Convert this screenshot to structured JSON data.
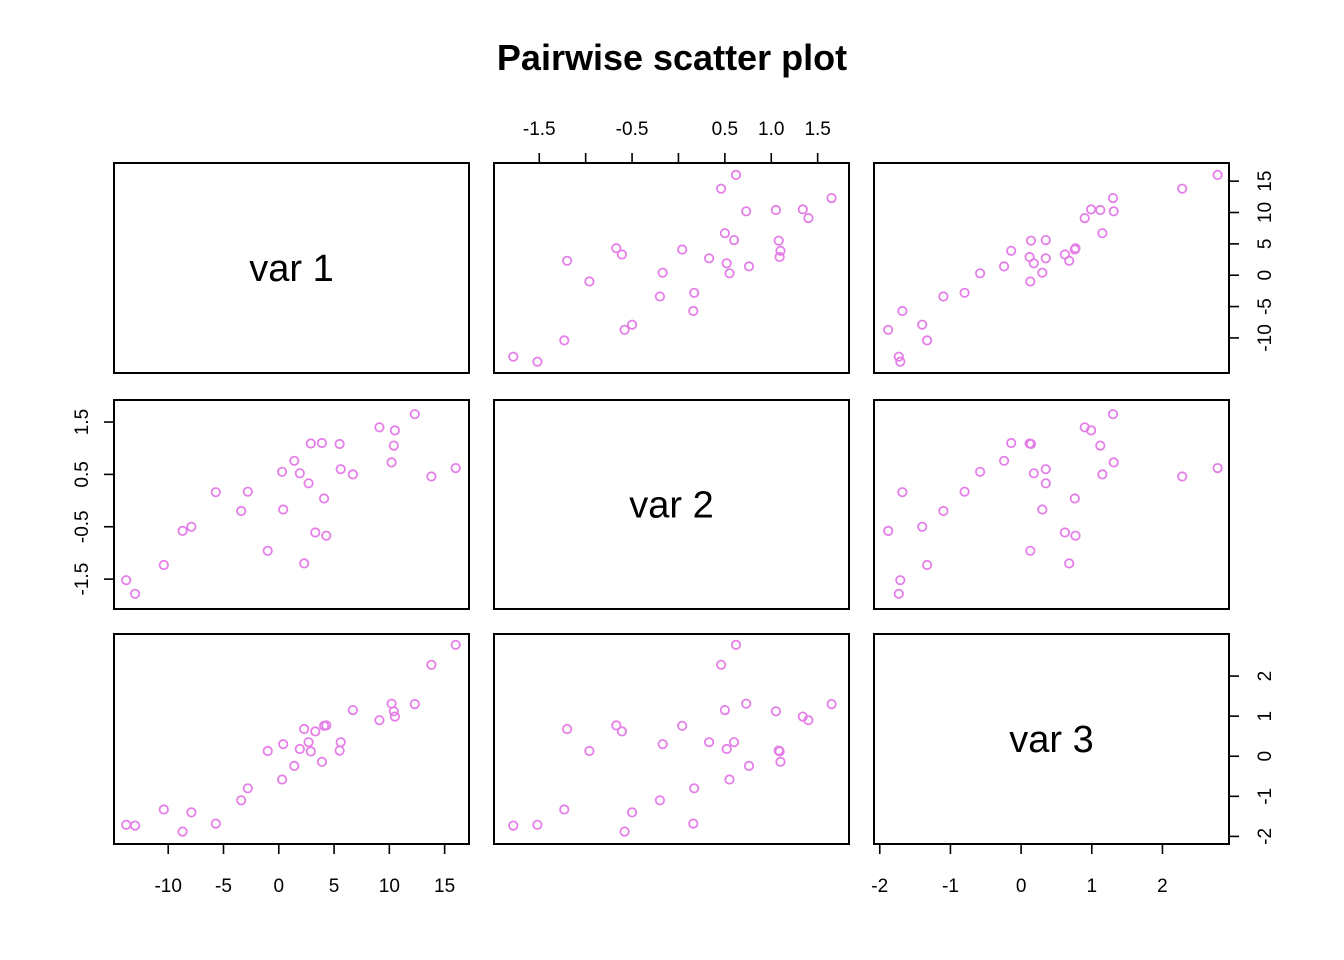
{
  "chart_data": {
    "type": "scatter",
    "title": "Pairwise scatter plot",
    "variables": [
      "var 1",
      "var 2",
      "var 3"
    ],
    "point_color": "#E57FE8",
    "axis_ticks": {
      "var1": {
        "values": [
          -10,
          -5,
          0,
          5,
          10,
          15
        ],
        "labels": [
          "-10",
          "-5",
          "0",
          "5",
          "10",
          "15"
        ]
      },
      "var2": {
        "values": [
          -1.5,
          -1.0,
          -0.5,
          0.0,
          0.5,
          1.0,
          1.5
        ],
        "labels": [
          "-1.5",
          "",
          "-0.5",
          "",
          "0.5",
          "1.0",
          "1.5"
        ]
      },
      "var2_left": {
        "values": [
          -1.5,
          -0.5,
          0.5,
          1.5
        ],
        "labels": [
          "-1.5",
          "-0.5",
          "0.5",
          "1.5"
        ]
      },
      "var3": {
        "values": [
          -2,
          -1,
          0,
          1,
          2
        ],
        "labels": [
          "-2",
          "-1",
          "0",
          "1",
          "2"
        ]
      },
      "var1_right": {
        "values": [
          -10,
          -5,
          0,
          5,
          10,
          15
        ],
        "labels": [
          "-10",
          "-5",
          "0",
          "5",
          "10",
          "15"
        ]
      }
    },
    "ranges": {
      "var1": [
        -14.0,
        16.3
      ],
      "var2": [
        -1.88,
        1.73
      ],
      "var3": [
        -1.94,
        2.8
      ]
    },
    "points": [
      {
        "var1": -13.0,
        "var2": -1.78,
        "var3": -1.73
      },
      {
        "var1": -13.8,
        "var2": -1.52,
        "var3": -1.71
      },
      {
        "var1": -10.4,
        "var2": -1.23,
        "var3": -1.33
      },
      {
        "var1": -8.7,
        "var2": -0.58,
        "var3": -1.88
      },
      {
        "var1": -7.9,
        "var2": -0.5,
        "var3": -1.4
      },
      {
        "var1": -5.7,
        "var2": 0.16,
        "var3": -1.68
      },
      {
        "var1": -3.4,
        "var2": -0.2,
        "var3": -1.1
      },
      {
        "var1": -2.8,
        "var2": 0.17,
        "var3": -0.8
      },
      {
        "var1": -1.0,
        "var2": -0.96,
        "var3": 0.13
      },
      {
        "var1": 0.3,
        "var2": 0.55,
        "var3": -0.58
      },
      {
        "var1": 0.4,
        "var2": -0.17,
        "var3": 0.3
      },
      {
        "var1": 1.4,
        "var2": 0.76,
        "var3": -0.24
      },
      {
        "var1": 1.9,
        "var2": 0.52,
        "var3": 0.18
      },
      {
        "var1": 2.3,
        "var2": -1.2,
        "var3": 0.68
      },
      {
        "var1": 2.7,
        "var2": 0.33,
        "var3": 0.35
      },
      {
        "var1": 2.9,
        "var2": 1.09,
        "var3": 0.12
      },
      {
        "var1": 3.3,
        "var2": -0.61,
        "var3": 0.62
      },
      {
        "var1": 3.9,
        "var2": 1.1,
        "var3": -0.14
      },
      {
        "var1": 4.1,
        "var2": 0.04,
        "var3": 0.76
      },
      {
        "var1": 4.3,
        "var2": -0.67,
        "var3": 0.77
      },
      {
        "var1": 5.5,
        "var2": 1.08,
        "var3": 0.14
      },
      {
        "var1": 5.6,
        "var2": 0.6,
        "var3": 0.35
      },
      {
        "var1": 6.7,
        "var2": 0.5,
        "var3": 1.15
      },
      {
        "var1": 9.1,
        "var2": 1.4,
        "var3": 0.9
      },
      {
        "var1": 10.2,
        "var2": 0.73,
        "var3": 1.31
      },
      {
        "var1": 10.4,
        "var2": 1.05,
        "var3": 1.12
      },
      {
        "var1": 10.5,
        "var2": 1.34,
        "var3": 0.99
      },
      {
        "var1": 12.3,
        "var2": 1.65,
        "var3": 1.3
      },
      {
        "var1": 13.8,
        "var2": 0.46,
        "var3": 2.28
      },
      {
        "var1": 16.0,
        "var2": 0.62,
        "var3": 2.78
      }
    ]
  }
}
